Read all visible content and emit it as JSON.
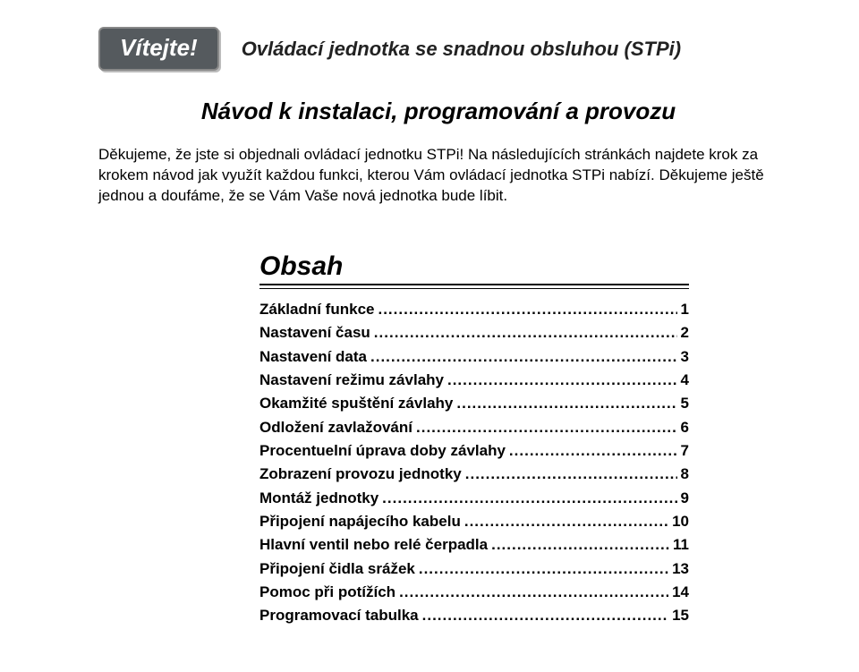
{
  "header": {
    "welcome": "Vítejte!",
    "subtitle": "Ovládací jednotka se snadnou obsluhou (STPi)"
  },
  "title": "Návod k instalaci, programování a provozu",
  "intro": "Děkujeme, že jste si objednali ovládací jednotku STPi! Na následujících stránkách najdete krok za krokem návod jak využít každou funkci, kterou Vám ovládací jednotka STPi nabízí. Děkujeme ještě jednou a doufáme, že se Vám Vaše nová jednotka bude líbit.",
  "obsah": {
    "heading": "Obsah",
    "items": [
      {
        "label": "Základní funkce",
        "page": "1"
      },
      {
        "label": "Nastavení času",
        "page": "2"
      },
      {
        "label": "Nastavení data",
        "page": "3"
      },
      {
        "label": "Nastavení režimu závlahy",
        "page": "4"
      },
      {
        "label": "Okamžité spuštění závlahy",
        "page": "5"
      },
      {
        "label": "Odložení zavlažování",
        "page": "6"
      },
      {
        "label": "Procentuelní úprava doby závlahy",
        "page": "7"
      },
      {
        "label": "Zobrazení provozu jednotky",
        "page": "8"
      },
      {
        "label": "Montáž jednotky",
        "page": "9"
      },
      {
        "label": "Připojení napájecího kabelu",
        "page": "10"
      },
      {
        "label": "Hlavní ventil nebo relé čerpadla",
        "page": "11"
      },
      {
        "label": "Připojení čidla srážek",
        "page": "13"
      },
      {
        "label": "Pomoc při potížích",
        "page": "14"
      },
      {
        "label": "Programovací tabulka",
        "page": "15"
      }
    ]
  },
  "colors": {
    "badge_bg": "#555a5e",
    "badge_text": "#ffffff",
    "text": "#000000",
    "page_bg": "#ffffff"
  },
  "typography": {
    "welcome_fontsize": 26,
    "subtitle_fontsize": 22,
    "title_fontsize": 26,
    "intro_fontsize": 17,
    "obsah_heading_fontsize": 30,
    "toc_fontsize": 17
  }
}
